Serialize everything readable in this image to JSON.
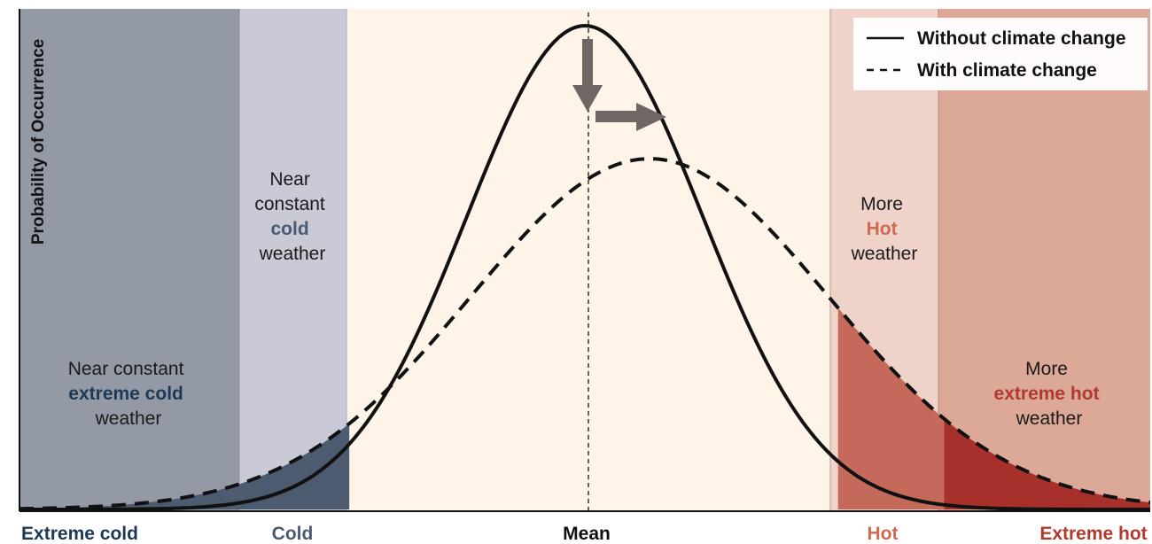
{
  "colors": {
    "extreme_cold_zone": "#9499a6",
    "cold_zone": "#c9cad6",
    "mid_zone": "#fef4e8",
    "hot_zone": "#efd2c8",
    "extreme_hot_zone": "#dca897",
    "extreme_cold_text": "#1c3a55",
    "cold_text": "#4a5a72",
    "hot_text": "#cc6a52",
    "extreme_hot_text": "#b03a30",
    "cold_tail_fill": "#4c5b6f",
    "hot_tail_fill": "#c5695a",
    "extreme_hot_tail_fill": "#a8302a",
    "arrow": "#6f6764"
  },
  "y_axis_label": "Probability of Occurrence",
  "legend": {
    "without": "Without climate change",
    "with": "With climate change"
  },
  "zones": {
    "extreme_cold": {
      "line1": "Near constant",
      "line2": "extreme cold",
      "line3": "weather"
    },
    "cold": {
      "line1": "Near",
      "line2": "constant",
      "line3": "cold",
      "line4": "weather"
    },
    "hot": {
      "line1": "More",
      "line2": "Hot",
      "line3": "weather"
    },
    "extreme_hot": {
      "line1": "More",
      "line2": "extreme hot",
      "line3": "weather"
    }
  },
  "x_categories": {
    "extreme_cold": "Extreme cold",
    "cold": "Cold",
    "mean": "Mean",
    "hot": "Hot",
    "extreme_hot": "Extreme hot"
  },
  "curves": {
    "without": {
      "mean": 0,
      "sd": 1.0,
      "peak": 1.0
    },
    "with": {
      "mean": 0.55,
      "sd": 1.52,
      "peak": 0.725
    }
  },
  "x_range": [
    -4.8,
    4.8
  ],
  "zone_bounds": {
    "extreme_cold_end": -3.0,
    "cold_end": -2.0,
    "hot_start": 2.15,
    "extreme_hot_start": 3.05
  }
}
